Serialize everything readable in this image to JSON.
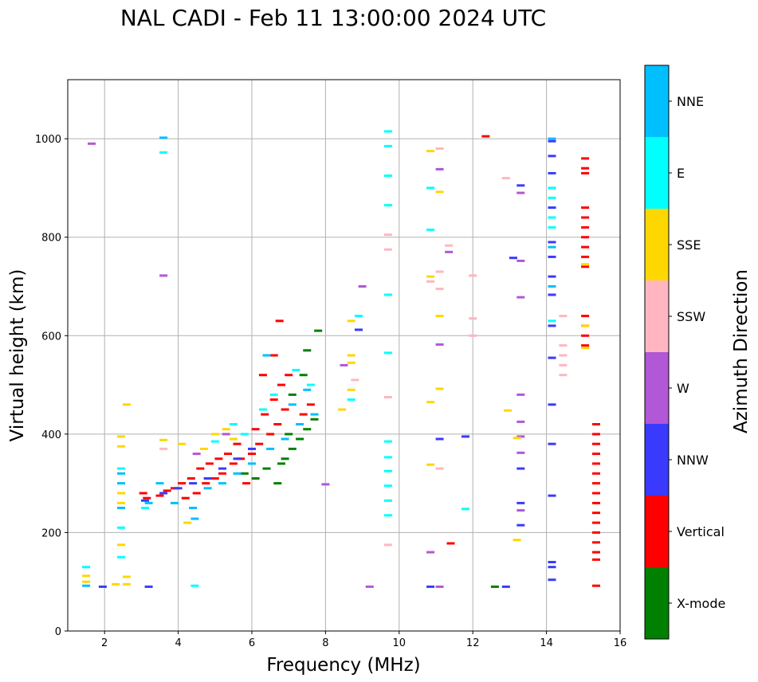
{
  "chart_data": {
    "type": "scatter",
    "title": "NAL CADI - Feb 11 13:00:00 2024 UTC",
    "xlabel": "Frequency (MHz)",
    "ylabel": "Virtual height (km)",
    "xlim": [
      1,
      16
    ],
    "ylim": [
      0,
      1120
    ],
    "xticks": [
      2,
      4,
      6,
      8,
      10,
      12,
      14,
      16
    ],
    "yticks": [
      0,
      200,
      400,
      600,
      800,
      1000
    ],
    "grid": true,
    "colorbar": {
      "title": "Azimuth Direction",
      "categories": [
        {
          "name": "X-mode",
          "color": "#008000"
        },
        {
          "name": "Vertical",
          "color": "#ff0000"
        },
        {
          "name": "NNW",
          "color": "#3a3aff"
        },
        {
          "name": "W",
          "color": "#b257d6"
        },
        {
          "name": "SSW",
          "color": "#ffb6c1"
        },
        {
          "name": "SSE",
          "color": "#ffd700"
        },
        {
          "name": "E",
          "color": "#00ffff"
        },
        {
          "name": "NNE",
          "color": "#00bfff"
        }
      ]
    },
    "series": [
      {
        "name": "Vertical",
        "points": [
          [
            3.05,
            280
          ],
          [
            3.15,
            270
          ],
          [
            3.5,
            275
          ],
          [
            3.7,
            285
          ],
          [
            3.9,
            290
          ],
          [
            4.1,
            300
          ],
          [
            4.2,
            270
          ],
          [
            4.35,
            310
          ],
          [
            4.5,
            280
          ],
          [
            4.6,
            330
          ],
          [
            4.75,
            300
          ],
          [
            4.85,
            340
          ],
          [
            5.0,
            310
          ],
          [
            5.1,
            350
          ],
          [
            5.2,
            320
          ],
          [
            5.35,
            360
          ],
          [
            5.5,
            340
          ],
          [
            5.6,
            380
          ],
          [
            5.7,
            350
          ],
          [
            5.85,
            300
          ],
          [
            6.0,
            360
          ],
          [
            6.1,
            410
          ],
          [
            6.2,
            380
          ],
          [
            6.35,
            440
          ],
          [
            6.5,
            400
          ],
          [
            6.6,
            470
          ],
          [
            6.7,
            420
          ],
          [
            6.8,
            500
          ],
          [
            6.9,
            450
          ],
          [
            7.0,
            520
          ],
          [
            6.3,
            520
          ],
          [
            6.6,
            560
          ],
          [
            6.75,
            630
          ],
          [
            7.4,
            440
          ],
          [
            7.6,
            460
          ],
          [
            12.35,
            1005
          ],
          [
            11.4,
            178
          ],
          [
            15.05,
            960
          ],
          [
            15.05,
            940
          ],
          [
            15.05,
            930
          ],
          [
            15.05,
            860
          ],
          [
            15.05,
            840
          ],
          [
            15.05,
            820
          ],
          [
            15.05,
            800
          ],
          [
            15.05,
            780
          ],
          [
            15.05,
            760
          ],
          [
            15.05,
            740
          ],
          [
            15.05,
            640
          ],
          [
            15.05,
            620
          ],
          [
            15.05,
            600
          ],
          [
            15.05,
            580
          ],
          [
            15.35,
            420
          ],
          [
            15.35,
            400
          ],
          [
            15.35,
            380
          ],
          [
            15.35,
            360
          ],
          [
            15.35,
            340
          ],
          [
            15.35,
            320
          ],
          [
            15.35,
            300
          ],
          [
            15.35,
            280
          ],
          [
            15.35,
            260
          ],
          [
            15.35,
            240
          ],
          [
            15.35,
            220
          ],
          [
            15.35,
            200
          ],
          [
            15.35,
            180
          ],
          [
            15.35,
            160
          ],
          [
            15.35,
            145
          ],
          [
            15.35,
            92
          ]
        ]
      },
      {
        "name": "X-mode",
        "points": [
          [
            5.8,
            320
          ],
          [
            6.1,
            310
          ],
          [
            6.4,
            330
          ],
          [
            6.7,
            300
          ],
          [
            6.9,
            350
          ],
          [
            7.1,
            370
          ],
          [
            7.3,
            390
          ],
          [
            7.5,
            410
          ],
          [
            7.7,
            430
          ],
          [
            7.1,
            480
          ],
          [
            7.4,
            520
          ],
          [
            7.8,
            610
          ],
          [
            7.5,
            570
          ],
          [
            12.6,
            90
          ],
          [
            7.0,
            400
          ],
          [
            6.8,
            340
          ]
        ]
      },
      {
        "name": "NNW",
        "points": [
          [
            3.1,
            265
          ],
          [
            3.6,
            280
          ],
          [
            4.0,
            290
          ],
          [
            4.4,
            300
          ],
          [
            4.8,
            310
          ],
          [
            5.2,
            330
          ],
          [
            5.6,
            350
          ],
          [
            6.0,
            370
          ],
          [
            8.9,
            612
          ],
          [
            11.1,
            390
          ],
          [
            11.8,
            395
          ],
          [
            13.3,
            260
          ],
          [
            13.3,
            215
          ],
          [
            13.3,
            330
          ],
          [
            13.1,
            758
          ],
          [
            13.3,
            905
          ],
          [
            12.9,
            90
          ],
          [
            14.15,
            995
          ],
          [
            14.15,
            965
          ],
          [
            14.15,
            930
          ],
          [
            14.15,
            860
          ],
          [
            14.15,
            790
          ],
          [
            14.15,
            760
          ],
          [
            14.15,
            720
          ],
          [
            14.15,
            683
          ],
          [
            14.15,
            620
          ],
          [
            14.15,
            555
          ],
          [
            14.15,
            460
          ],
          [
            14.15,
            380
          ],
          [
            14.15,
            275
          ],
          [
            14.15,
            140
          ],
          [
            14.15,
            130
          ],
          [
            14.15,
            104
          ],
          [
            10.85,
            90
          ],
          [
            1.95,
            90
          ],
          [
            3.2,
            90
          ]
        ]
      },
      {
        "name": "W",
        "points": [
          [
            1.65,
            990
          ],
          [
            3.6,
            722
          ],
          [
            8.0,
            298
          ],
          [
            8.5,
            540
          ],
          [
            9.0,
            700
          ],
          [
            9.2,
            90
          ],
          [
            10.85,
            160
          ],
          [
            11.1,
            90
          ],
          [
            11.1,
            582
          ],
          [
            11.1,
            938
          ],
          [
            11.35,
            770
          ],
          [
            13.3,
            890
          ],
          [
            13.3,
            752
          ],
          [
            13.3,
            678
          ],
          [
            13.3,
            480
          ],
          [
            13.3,
            425
          ],
          [
            13.3,
            395
          ],
          [
            13.3,
            362
          ],
          [
            13.3,
            245
          ],
          [
            4.5,
            360
          ],
          [
            5.3,
            400
          ]
        ]
      },
      {
        "name": "SSW",
        "points": [
          [
            8.8,
            510
          ],
          [
            9.7,
            175
          ],
          [
            10.85,
            710
          ],
          [
            11.1,
            980
          ],
          [
            11.1,
            730
          ],
          [
            11.1,
            695
          ],
          [
            11.35,
            783
          ],
          [
            11.1,
            330
          ],
          [
            12.0,
            722
          ],
          [
            12.0,
            635
          ],
          [
            12.0,
            600
          ],
          [
            12.9,
            920
          ],
          [
            14.45,
            640
          ],
          [
            14.45,
            580
          ],
          [
            14.45,
            560
          ],
          [
            14.45,
            540
          ],
          [
            14.45,
            520
          ],
          [
            3.6,
            370
          ],
          [
            9.7,
            475
          ],
          [
            9.7,
            805
          ],
          [
            9.7,
            775
          ]
        ]
      },
      {
        "name": "SSE",
        "points": [
          [
            1.5,
            112
          ],
          [
            1.5,
            100
          ],
          [
            2.3,
            95
          ],
          [
            2.45,
            395
          ],
          [
            2.45,
            375
          ],
          [
            2.45,
            280
          ],
          [
            2.45,
            260
          ],
          [
            2.45,
            175
          ],
          [
            2.6,
            460
          ],
          [
            3.6,
            388
          ],
          [
            4.1,
            380
          ],
          [
            4.25,
            220
          ],
          [
            4.7,
            370
          ],
          [
            5.0,
            400
          ],
          [
            5.3,
            410
          ],
          [
            5.5,
            390
          ],
          [
            8.45,
            450
          ],
          [
            8.7,
            490
          ],
          [
            8.7,
            630
          ],
          [
            8.7,
            560
          ],
          [
            8.7,
            545
          ],
          [
            10.85,
            975
          ],
          [
            10.85,
            720
          ],
          [
            10.85,
            465
          ],
          [
            10.85,
            338
          ],
          [
            11.1,
            892
          ],
          [
            11.1,
            640
          ],
          [
            11.1,
            492
          ],
          [
            12.95,
            448
          ],
          [
            13.2,
            392
          ],
          [
            13.2,
            185
          ],
          [
            15.05,
            745
          ],
          [
            15.05,
            620
          ],
          [
            15.05,
            575
          ],
          [
            2.6,
            110
          ],
          [
            2.6,
            95
          ]
        ]
      },
      {
        "name": "E",
        "points": [
          [
            1.5,
            130
          ],
          [
            3.6,
            972
          ],
          [
            4.45,
            92
          ],
          [
            5.0,
            385
          ],
          [
            5.5,
            420
          ],
          [
            5.8,
            400
          ],
          [
            6.3,
            450
          ],
          [
            6.6,
            480
          ],
          [
            7.2,
            530
          ],
          [
            7.6,
            500
          ],
          [
            8.7,
            470
          ],
          [
            8.9,
            640
          ],
          [
            9.7,
            1015
          ],
          [
            9.7,
            985
          ],
          [
            9.7,
            925
          ],
          [
            9.7,
            865
          ],
          [
            9.7,
            683
          ],
          [
            9.7,
            565
          ],
          [
            9.7,
            385
          ],
          [
            9.7,
            353
          ],
          [
            9.7,
            325
          ],
          [
            9.7,
            295
          ],
          [
            9.7,
            265
          ],
          [
            9.7,
            235
          ],
          [
            10.85,
            815
          ],
          [
            10.85,
            900
          ],
          [
            11.8,
            248
          ],
          [
            14.15,
            900
          ],
          [
            14.15,
            880
          ],
          [
            14.15,
            840
          ],
          [
            14.15,
            820
          ],
          [
            14.15,
            630
          ],
          [
            2.45,
            330
          ],
          [
            2.45,
            210
          ],
          [
            2.45,
            150
          ],
          [
            3.1,
            250
          ]
        ]
      },
      {
        "name": "NNE",
        "points": [
          [
            1.5,
            92
          ],
          [
            3.6,
            1002
          ],
          [
            3.2,
            260
          ],
          [
            3.5,
            300
          ],
          [
            3.9,
            260
          ],
          [
            4.4,
            250
          ],
          [
            4.45,
            228
          ],
          [
            4.8,
            290
          ],
          [
            5.2,
            300
          ],
          [
            5.6,
            320
          ],
          [
            6.0,
            340
          ],
          [
            6.5,
            370
          ],
          [
            6.9,
            390
          ],
          [
            7.3,
            420
          ],
          [
            7.7,
            440
          ],
          [
            7.5,
            490
          ],
          [
            7.1,
            460
          ],
          [
            6.4,
            560
          ],
          [
            2.45,
            320
          ],
          [
            2.45,
            300
          ],
          [
            2.45,
            250
          ],
          [
            14.15,
            1000
          ],
          [
            14.15,
            780
          ],
          [
            14.15,
            700
          ]
        ]
      }
    ]
  }
}
